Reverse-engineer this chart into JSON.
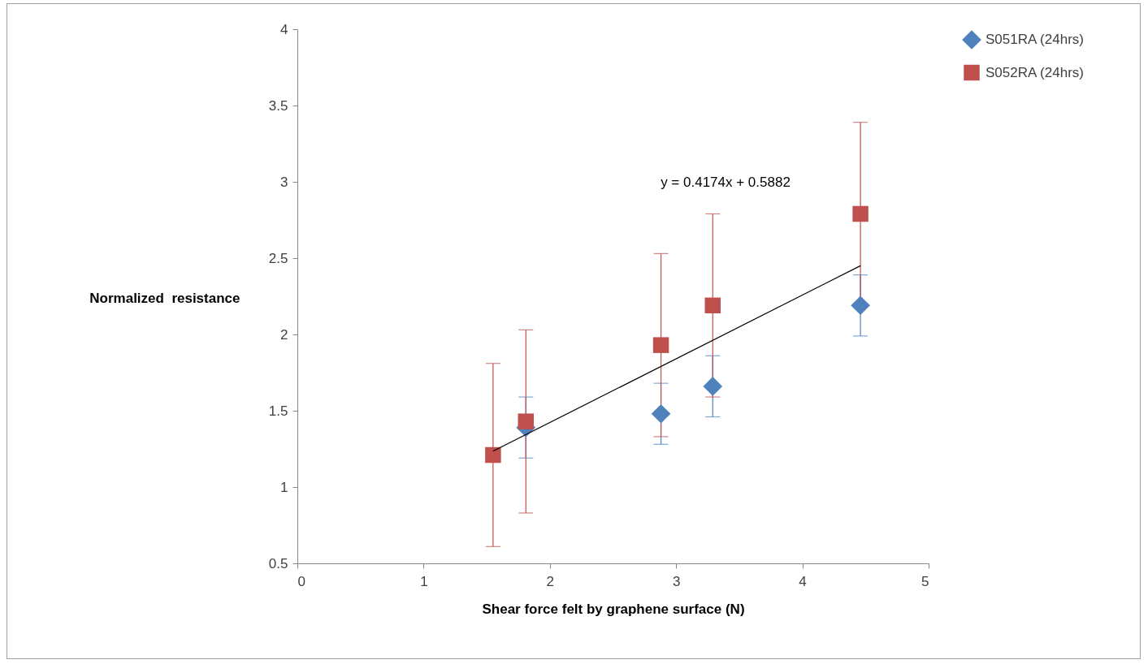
{
  "chart_data": {
    "type": "scatter",
    "xlabel": "Shear force felt by graphene surface (N)",
    "ylabel": "Normalized  resistance",
    "x": [
      1.55,
      1.81,
      2.88,
      3.29,
      4.46
    ],
    "series": [
      {
        "name": "S051RA (24hrs)",
        "color": "#4f81bd",
        "marker": "diamond",
        "values": [
          null,
          1.39,
          1.48,
          1.66,
          2.19
        ],
        "errors": [
          null,
          0.2,
          0.2,
          0.2,
          0.2
        ]
      },
      {
        "name": "S052RA (24hrs)",
        "color": "#c0504d",
        "marker": "square",
        "values": [
          1.21,
          1.43,
          1.93,
          2.19,
          2.79
        ],
        "errors": [
          0.6,
          0.6,
          0.6,
          0.6,
          0.6
        ]
      },
      {
        "type": "line",
        "color": "#000000",
        "x": [
          1.55,
          4.46
        ],
        "values": [
          1.235,
          2.45
        ]
      }
    ],
    "annotations": [
      "y = 0.4174x + 0.5882"
    ],
    "xlim": [
      0,
      5
    ],
    "xticks": [
      0,
      1,
      2,
      3,
      4,
      5
    ],
    "ylim": [
      0.5,
      4
    ],
    "yticks": [
      0.5,
      1,
      1.5,
      2,
      2.5,
      3,
      3.5,
      4
    ],
    "grid": false,
    "legend": "right"
  }
}
